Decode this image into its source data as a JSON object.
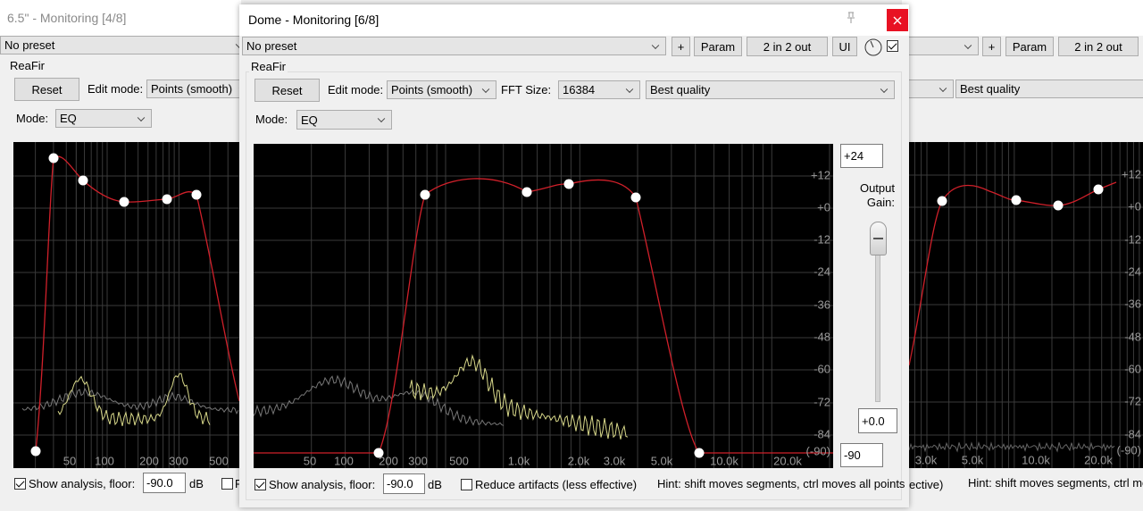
{
  "left_window": {
    "title": "6.5\" - Monitoring [4/8]",
    "preset": "No preset",
    "plugin": "ReaFir",
    "reset": "Reset",
    "edit_mode_label": "Edit mode:",
    "edit_mode": "Points (smooth)",
    "mode_label": "Mode:",
    "mode": "EQ",
    "x_labels": [
      "50",
      "100",
      "200",
      "300",
      "500"
    ],
    "show_analysis": "Show analysis, floor:",
    "floor": "-90.0",
    "floor_unit": "dB",
    "reduce_artifacts": "R"
  },
  "main_window": {
    "title": "Dome - Monitoring [6/8]",
    "preset": "No preset",
    "add": "+",
    "param": "Param",
    "io": "2 in 2 out",
    "ui": "UI",
    "plugin": "ReaFir",
    "reset": "Reset",
    "edit_mode_label": "Edit mode:",
    "edit_mode": "Points (smooth)",
    "fft_label": "FFT Size:",
    "fft_size": "16384",
    "quality": "Best quality",
    "mode_label": "Mode:",
    "mode": "EQ",
    "range_top": "+24",
    "output_gain_label": [
      "Output",
      "Gain:"
    ],
    "output_gain": "+0.0",
    "range_bottom": "-90",
    "y_labels": [
      "+12",
      "+0",
      "-12",
      "-24",
      "-36",
      "-48",
      "-60",
      "-72",
      "-84",
      "(-90)"
    ],
    "x_labels": [
      "50",
      "100",
      "200",
      "300",
      "500",
      "1.0k",
      "2.0k",
      "3.0k",
      "5.0k",
      "10.0k",
      "20.0k"
    ],
    "show_analysis": "Show analysis, floor:",
    "floor": "-90.0",
    "floor_unit": "dB",
    "reduce_artifacts": "Reduce artifacts (less effective)",
    "hint": "Hint: shift moves segments, ctrl moves all points"
  },
  "right_window": {
    "add": "+",
    "param": "Param",
    "io": "2 in 2 out",
    "quality": "Best quality",
    "y_labels": [
      "+12",
      "+0",
      "-12",
      "-24",
      "-36",
      "-48",
      "-60",
      "-72",
      "-84",
      "(-90)"
    ],
    "x_labels": [
      "3.0k",
      "5.0k",
      "10.0k",
      "20.0k"
    ],
    "reduce_artifacts": "ective)",
    "hint": "Hint: shift moves segments, ctrl mov"
  }
}
